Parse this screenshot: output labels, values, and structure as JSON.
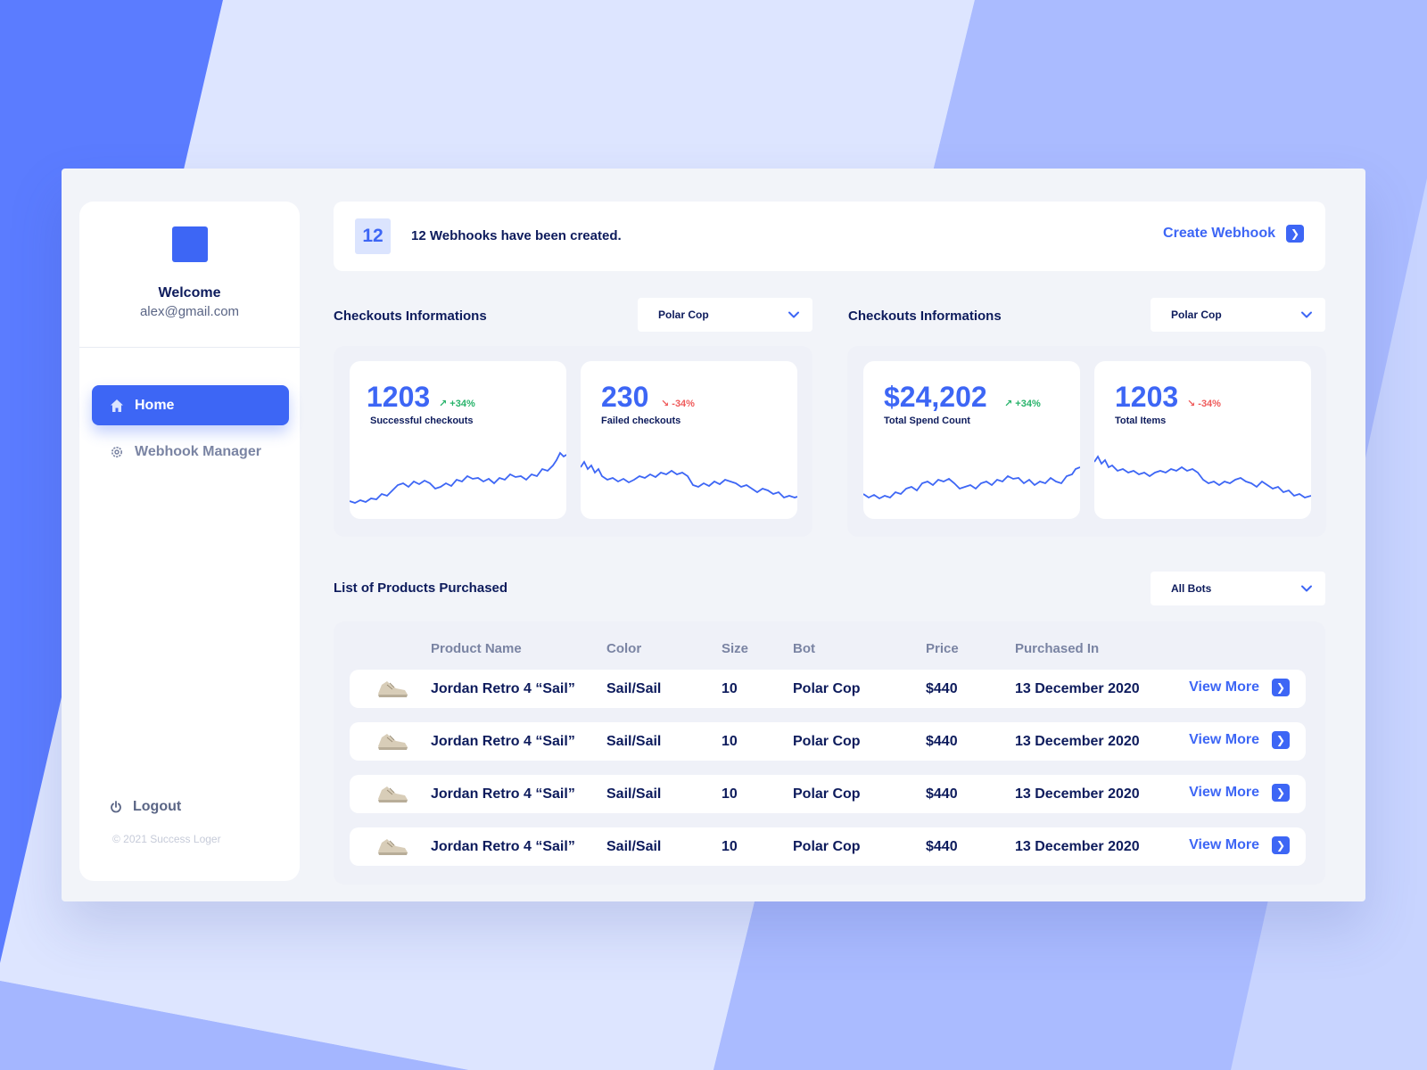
{
  "sidebar": {
    "welcome": "Welcome",
    "email": "alex@gmail.com",
    "nav": [
      {
        "label": "Home",
        "icon": "home-icon",
        "active": true
      },
      {
        "label": "Webhook Manager",
        "icon": "gear-icon",
        "active": false
      }
    ],
    "logout_label": "Logout",
    "copyright": "© 2021 Success Loger"
  },
  "webhook_bar": {
    "count": "12",
    "message": "12 Webhooks have been created.",
    "create_label": "Create Webhook"
  },
  "checkouts": [
    {
      "title": "Checkouts Informations",
      "dropdown": "Polar Cop",
      "cards": [
        {
          "value": "1203",
          "delta": "+34%",
          "trend": "up",
          "label": "Successful checkouts"
        },
        {
          "value": "230",
          "delta": "-34%",
          "trend": "down",
          "label": "Failed checkouts"
        }
      ]
    },
    {
      "title": "Checkouts Informations",
      "dropdown": "Polar Cop",
      "cards": [
        {
          "value": "$24,202",
          "delta": "+34%",
          "trend": "up",
          "label": "Total Spend Count"
        },
        {
          "value": "1203",
          "delta": "-34%",
          "trend": "down",
          "label": "Total Items"
        }
      ]
    }
  ],
  "products": {
    "title": "List of Products Purchased",
    "dropdown": "All Bots",
    "headers": [
      "Product Name",
      "Color",
      "Size",
      "Bot",
      "Price",
      "Purchased In"
    ],
    "view_more_label": "View More",
    "rows": [
      {
        "name": "Jordan Retro 4 “Sail”",
        "color": "Sail/Sail",
        "size": "10",
        "bot": "Polar Cop",
        "price": "$440",
        "date": "13 December 2020"
      },
      {
        "name": "Jordan Retro 4 “Sail”",
        "color": "Sail/Sail",
        "size": "10",
        "bot": "Polar Cop",
        "price": "$440",
        "date": "13 December 2020"
      },
      {
        "name": "Jordan Retro 4 “Sail”",
        "color": "Sail/Sail",
        "size": "10",
        "bot": "Polar Cop",
        "price": "$440",
        "date": "13 December 2020"
      },
      {
        "name": "Jordan Retro 4 “Sail”",
        "color": "Sail/Sail",
        "size": "10",
        "bot": "Polar Cop",
        "price": "$440",
        "date": "13 December 2020"
      }
    ]
  },
  "colors": {
    "accent": "#3d66f5",
    "up": "#27b36a",
    "down": "#ef5b5b",
    "text": "#0d1b5c"
  }
}
